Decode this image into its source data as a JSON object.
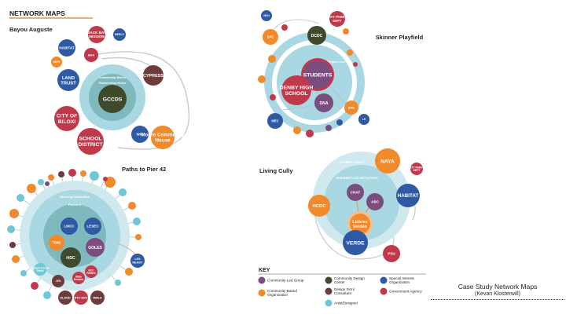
{
  "header": {
    "title": "NETWORK MAPS"
  },
  "colors": {
    "community_led": "#7b4d7f",
    "community_based": "#f08a2c",
    "design_center": "#3f4a2c",
    "design_firm": "#6e3b3b",
    "artist": "#6ec6d6",
    "special_interest": "#2f5aa3",
    "government": "#c0394b",
    "ring": "#a9d8e2",
    "ring_dark": "#7fb8bd"
  },
  "maps": [
    {
      "title": "Bayou Auguste",
      "ring_labels": [
        "Leadership Roles",
        "Partnership Roles"
      ],
      "nodes": [
        {
          "label": "GCCDS",
          "cat": "design_center"
        },
        {
          "label": "BACK BAY MISSION",
          "cat": "government"
        },
        {
          "label": "MERCY",
          "cat": "special_interest"
        },
        {
          "label": "HABITAT",
          "cat": "special_interest"
        },
        {
          "label": "BHA",
          "cat": "government"
        },
        {
          "label": "HOPE",
          "cat": "community_based"
        },
        {
          "label": "LAND TRUST",
          "cat": "special_interest"
        },
        {
          "label": "CYPRESS",
          "cat": "design_firm"
        },
        {
          "label": "CITY OF BILOXI",
          "cat": "government"
        },
        {
          "label": "SCHOOL DISTRICT",
          "cat": "government"
        },
        {
          "label": "WIC",
          "cat": "special_interest"
        },
        {
          "label": "Moore Community House",
          "cat": "community_based"
        }
      ]
    },
    {
      "title": "Skinner Playfield",
      "ring_labels": [
        "Project Core"
      ],
      "nodes": [
        {
          "label": "MCH",
          "cat": "special_interest"
        },
        {
          "label": "CITY PARKS DEPT",
          "cat": "government"
        },
        {
          "label": "DFC",
          "cat": "community_based"
        },
        {
          "label": "DCDC",
          "cat": "design_center"
        },
        {
          "label": "STUDENTS",
          "cat": "community_led"
        },
        {
          "label": "DENBY HIGH SCHOOL",
          "cat": "government"
        },
        {
          "label": "DNA",
          "cat": "community_led"
        },
        {
          "label": "BFG",
          "cat": "community_based"
        },
        {
          "label": "MEC",
          "cat": "special_interest"
        },
        {
          "label": "LR",
          "cat": "special_interest"
        }
      ]
    },
    {
      "title": "Paths to Pier 42",
      "ring_labels": [
        "Steering Committee",
        "Partners"
      ],
      "nodes": [
        {
          "label": "LMCC",
          "cat": "special_interest"
        },
        {
          "label": "LESEC",
          "cat": "special_interest"
        },
        {
          "label": "TSNC",
          "cat": "community_based"
        },
        {
          "label": "GOLES",
          "cat": "community_led"
        },
        {
          "label": "HSC",
          "cat": "design_center"
        },
        {
          "label": "LES READY",
          "cat": "special_interest"
        },
        {
          "label": "State Senator",
          "cat": "government"
        },
        {
          "label": "NYC PARKS",
          "cat": "government"
        },
        {
          "label": "Seward Corner Parks",
          "cat": "artist"
        },
        {
          "label": "LES",
          "cat": "design_firm"
        },
        {
          "label": "DLAND",
          "cat": "design_firm"
        },
        {
          "label": "NYC EDC",
          "cat": "government"
        },
        {
          "label": "MMLA",
          "cat": "design_firm"
        }
      ]
    },
    {
      "title": "Living Cully",
      "ring_labels": [
        "LIVING CULLY",
        "RESIDENT-LED INITIATIVES"
      ],
      "nodes": [
        {
          "label": "NAYA",
          "cat": "community_based"
        },
        {
          "label": "CITY PARKS DEPT",
          "cat": "government"
        },
        {
          "label": "HCDC",
          "cat": "community_based"
        },
        {
          "label": "HABITAT",
          "cat": "special_interest"
        },
        {
          "label": "CHAT",
          "cat": "community_led"
        },
        {
          "label": "ABC",
          "cat": "community_led"
        },
        {
          "label": "Lideres Verdes",
          "cat": "community_based"
        },
        {
          "label": "VERDE",
          "cat": "special_interest"
        },
        {
          "label": "PSU",
          "cat": "government"
        }
      ]
    }
  ],
  "key": {
    "title": "KEY",
    "items": [
      {
        "label": "Community-Led Group",
        "cat": "community_led"
      },
      {
        "label": "Community-Based Organization",
        "cat": "community_based"
      },
      {
        "label": "Community Design Center",
        "cat": "design_center"
      },
      {
        "label": "Design Firm/ Consultant",
        "cat": "design_firm"
      },
      {
        "label": "Artist/Designer",
        "cat": "artist"
      },
      {
        "label": "Special Interest Organization",
        "cat": "special_interest"
      },
      {
        "label": "Government Agency",
        "cat": "government"
      }
    ]
  },
  "caption": {
    "line1": "Case Study Network Maps",
    "line2": "(Kevan Klosterwill)"
  }
}
